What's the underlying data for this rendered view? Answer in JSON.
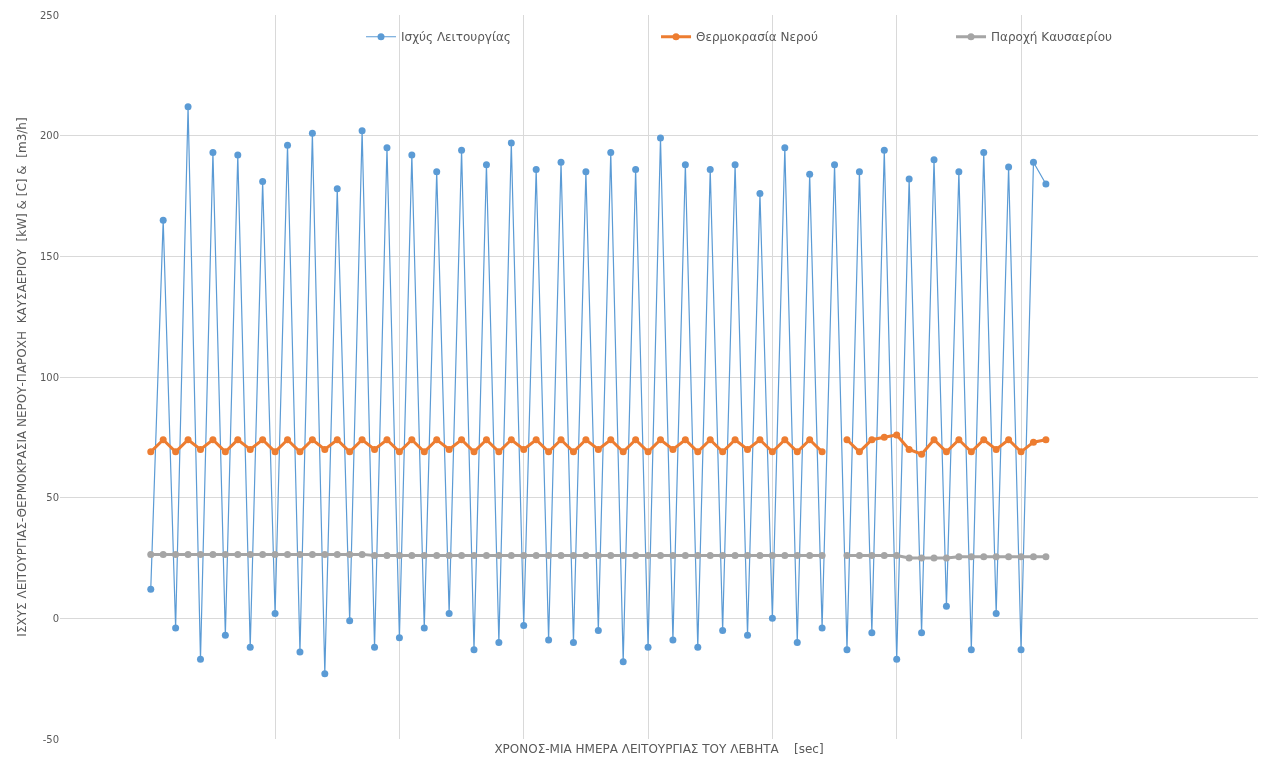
{
  "chart_data": {
    "type": "line",
    "xlabel": "ΧΡΟΝΟΣ-ΜΙΑ ΗΜΕΡΑ ΛΕΙΤΟΥΡΓΙΑΣ ΤΟΥ ΛΕΒΗΤΑ    [sec]",
    "ylabel": "ΙΣΧΥΣ ΛΕΙΤΟΥΡΓΙΑΣ-ΘΕΡΜΟΚΡΑΣΙΑ ΝΕΡΟΥ-ΠΑΡΟΧΗ  ΚΑΥΣΑΕΡΙΟΥ  [kW] & [C] &  [m3/h]",
    "categories": [
      null,
      null,
      null,
      null,
      null,
      null,
      null,
      null,
      null,
      null,
      null,
      null,
      null,
      null,
      null,
      null,
      null,
      null,
      null,
      null,
      null,
      null,
      null,
      null,
      null,
      null,
      null,
      null,
      null,
      null,
      null,
      null,
      null,
      null,
      null,
      null,
      null,
      null,
      null,
      null,
      null,
      null,
      null,
      null,
      null,
      null,
      null,
      null,
      null,
      null,
      null,
      null,
      null,
      null,
      null,
      null,
      null,
      null,
      null,
      null,
      null,
      null,
      null,
      null,
      null,
      null,
      null,
      null,
      null,
      null,
      null,
      null,
      null
    ],
    "series": [
      {
        "name": "Ισχύς Λειτουργίας",
        "color": "#5b9bd5",
        "values": [
          12,
          165,
          -4,
          212,
          -17,
          193,
          -7,
          192,
          -12,
          181,
          2,
          196,
          -14,
          201,
          -23,
          178,
          -1,
          202,
          -12,
          195,
          -8,
          192,
          -4,
          185,
          2,
          194,
          -13,
          188,
          -10,
          197,
          -3,
          186,
          -9,
          189,
          -10,
          185,
          -5,
          193,
          -18,
          186,
          -12,
          199,
          -9,
          188,
          -12,
          186,
          -5,
          188,
          -7,
          176,
          0,
          195,
          -10,
          184,
          -4,
          188,
          -13,
          185,
          -6,
          194,
          -17,
          182,
          -6,
          190,
          5,
          185,
          -13,
          193,
          2,
          187,
          -13,
          189,
          180
        ]
      },
      {
        "name": "Θερμοκρασία Νερού",
        "color": "#ed7d31",
        "values": [
          69,
          74,
          69,
          74,
          70,
          74,
          69,
          74,
          70,
          74,
          69,
          74,
          69,
          74,
          70,
          74,
          69,
          74,
          70,
          74,
          69,
          74,
          69,
          74,
          70,
          74,
          69,
          74,
          69,
          74,
          70,
          74,
          69,
          74,
          69,
          74,
          70,
          74,
          69,
          74,
          69,
          74,
          70,
          74,
          69,
          74,
          69,
          74,
          70,
          74,
          69,
          74,
          69,
          74,
          69,
          null,
          74,
          69,
          74,
          75,
          76,
          70,
          68,
          74,
          69,
          74,
          69,
          74,
          70,
          74,
          69,
          73,
          74
        ]
      },
      {
        "name": "Παροχή Καυσαερίου",
        "color": "#a5a5a5",
        "values": [
          26.5,
          26.5,
          26.5,
          26.5,
          26.5,
          26.5,
          26.5,
          26.5,
          26.5,
          26.5,
          26.5,
          26.5,
          26.5,
          26.5,
          26.5,
          26.5,
          26.5,
          26.5,
          26,
          26,
          26,
          26,
          26,
          26,
          26,
          26,
          26,
          26,
          26,
          26,
          26,
          26,
          26,
          26,
          26,
          26,
          26,
          26,
          26,
          26,
          26,
          26,
          26,
          26,
          26,
          26,
          26,
          26,
          26,
          26,
          26,
          26,
          26,
          26,
          26,
          null,
          26,
          26,
          26,
          26,
          26,
          25,
          25,
          25,
          25,
          25.5,
          25.5,
          25.5,
          25.5,
          25.5,
          25.5,
          25.5,
          25.5
        ]
      }
    ],
    "ylim": [
      -50,
      250
    ],
    "yticks": [
      -50,
      0,
      50,
      100,
      150,
      200,
      250
    ],
    "grid": true,
    "legend": "top right",
    "marker": "circle",
    "line_style": "solid",
    "tick_labels": "y"
  }
}
